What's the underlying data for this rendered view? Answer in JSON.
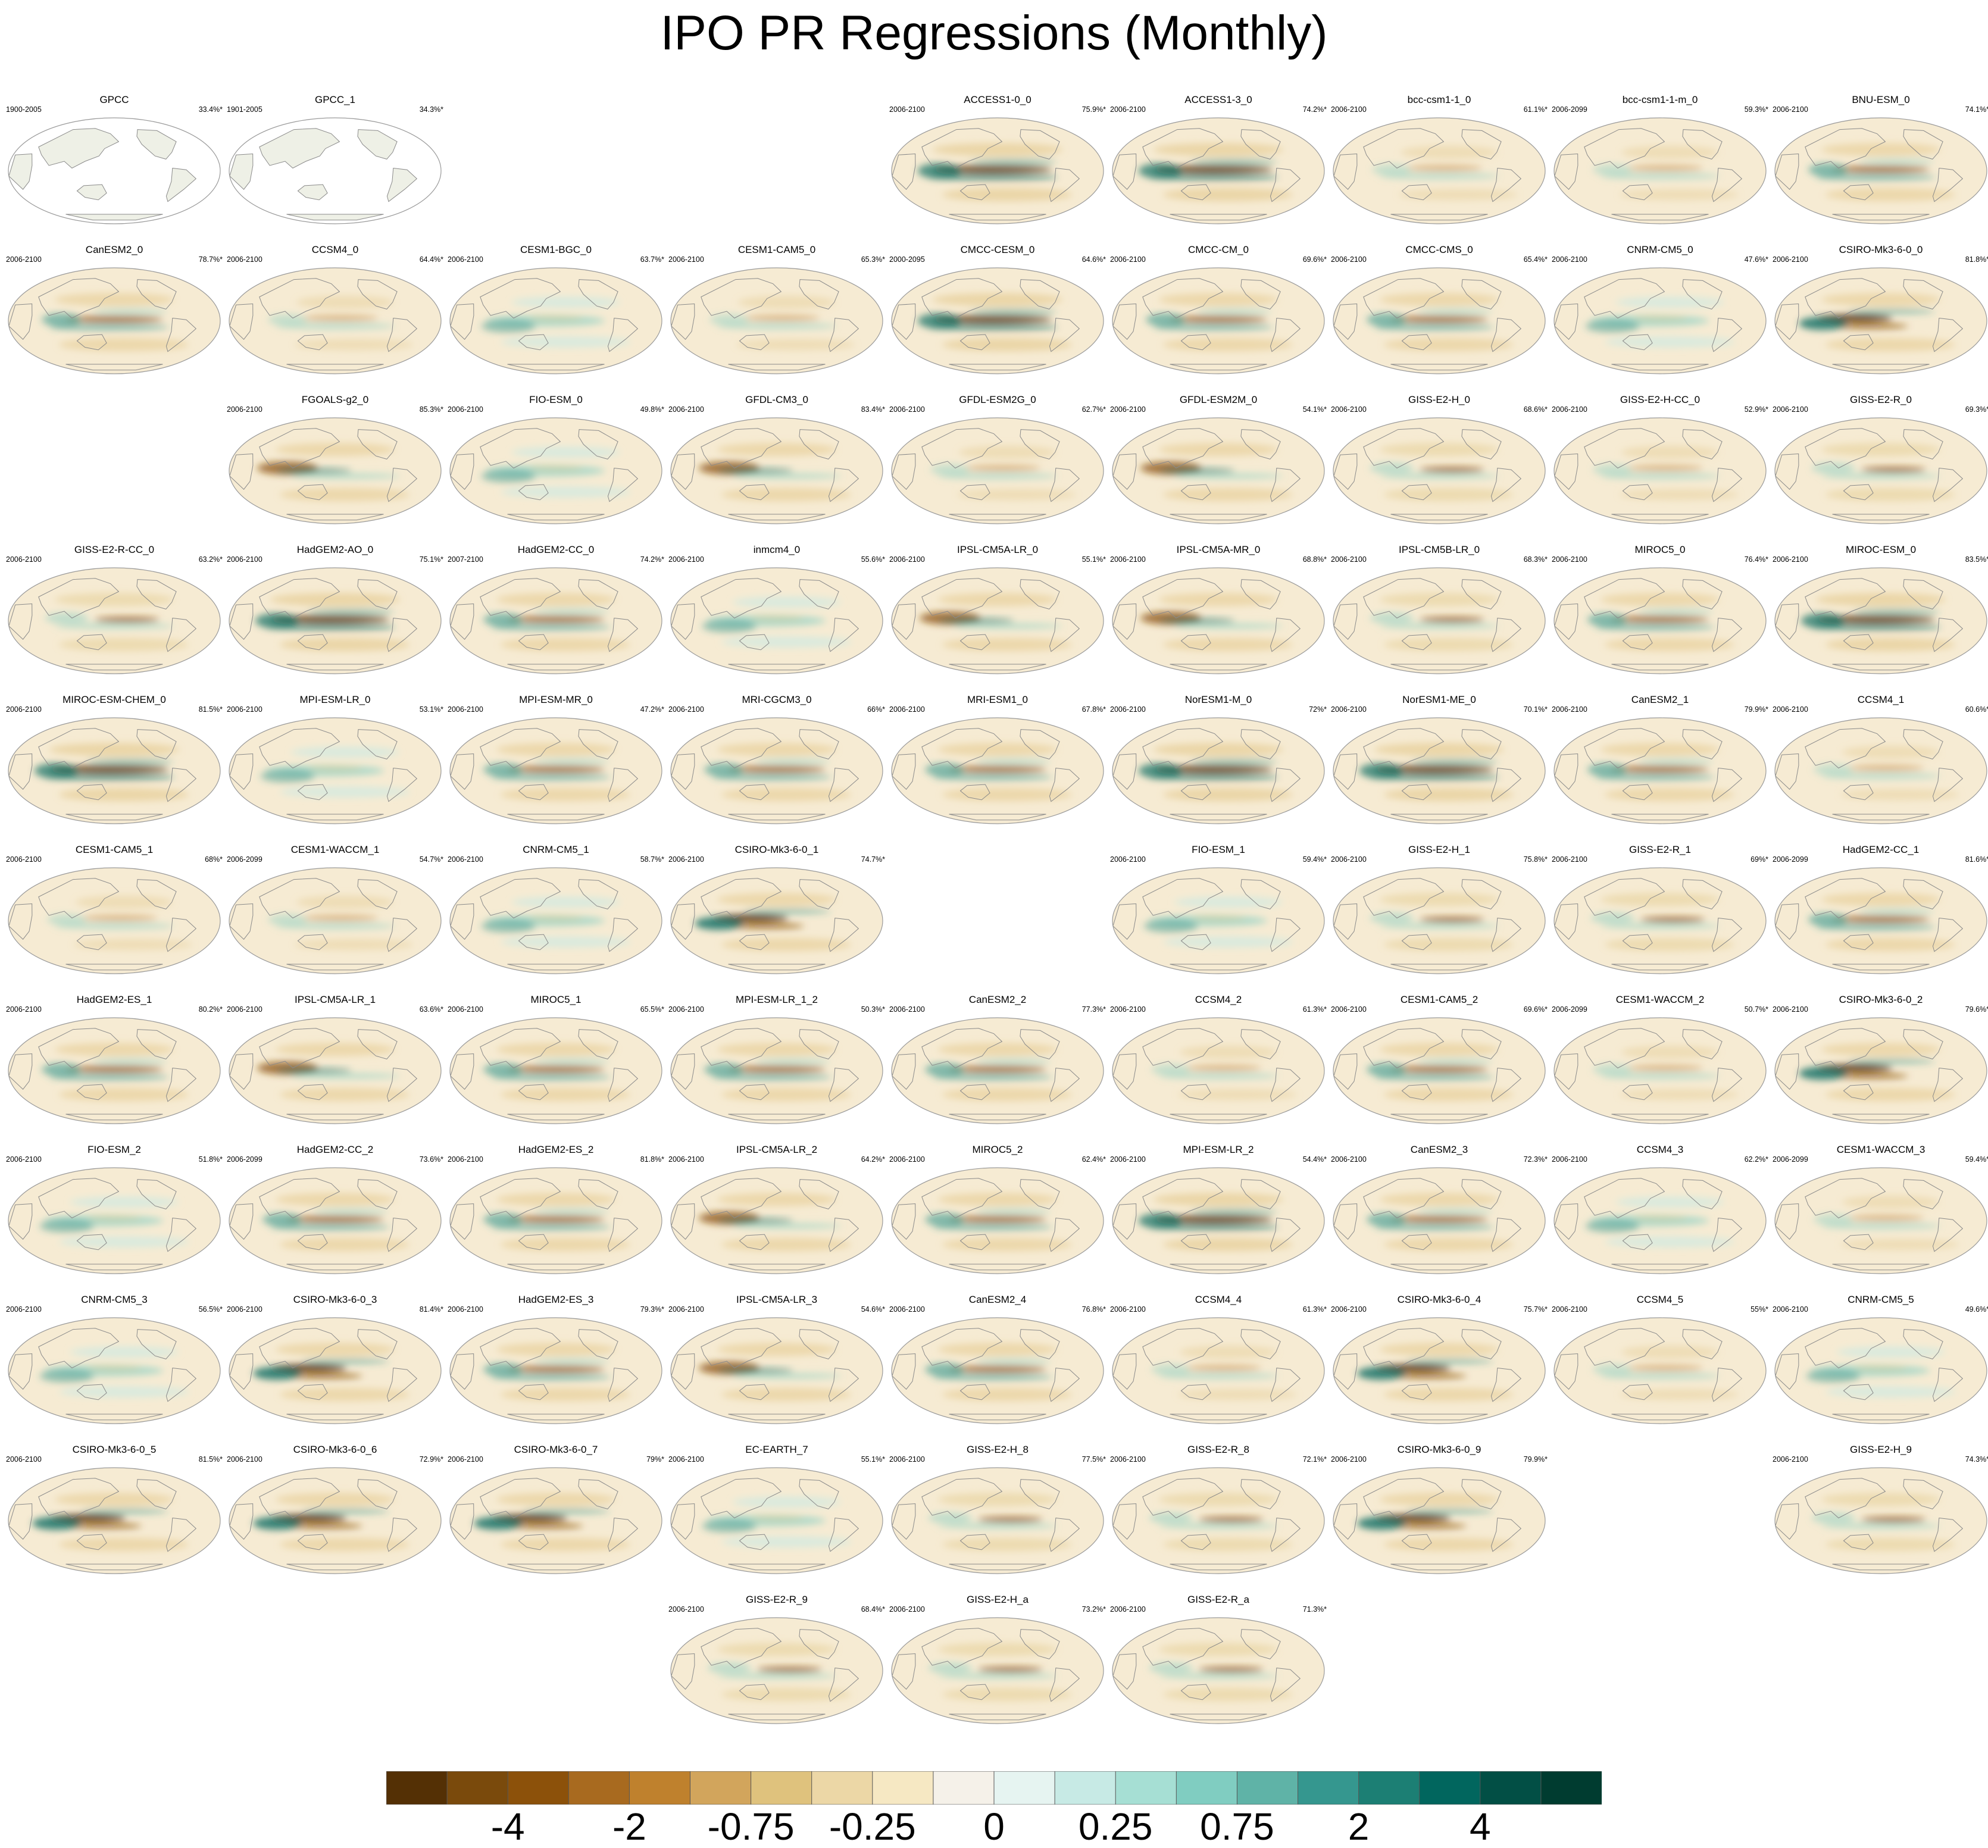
{
  "title": "IPO PR Regressions (Monthly)",
  "panels": [
    {
      "name": "GPCC",
      "years": "1900-2005",
      "pct": "33.4%*",
      "row": 0,
      "col": 0,
      "pattern": "obs"
    },
    {
      "name": "GPCC_1",
      "years": "1901-2005",
      "pct": "34.3%*",
      "row": 0,
      "col": 1,
      "pattern": "obs"
    },
    {
      "name": "ACCESS1-0_0",
      "years": "2006-2100",
      "pct": "75.9%*",
      "row": 0,
      "col": 4,
      "pattern": "strong"
    },
    {
      "name": "ACCESS1-3_0",
      "years": "2006-2100",
      "pct": "74.2%*",
      "row": 0,
      "col": 5,
      "pattern": "strong"
    },
    {
      "name": "bcc-csm1-1_0",
      "years": "2006-2100",
      "pct": "61.1%*",
      "row": 0,
      "col": 6,
      "pattern": "weak"
    },
    {
      "name": "bcc-csm1-1-m_0",
      "years": "2006-2099",
      "pct": "59.3%*",
      "row": 0,
      "col": 7,
      "pattern": "weak"
    },
    {
      "name": "BNU-ESM_0",
      "years": "2006-2100",
      "pct": "74.1%*",
      "row": 0,
      "col": 8,
      "pattern": "moderate"
    },
    {
      "name": "CanESM2_0",
      "years": "2006-2100",
      "pct": "78.7%*",
      "row": 1,
      "col": 0,
      "pattern": "moderate"
    },
    {
      "name": "CCSM4_0",
      "years": "2006-2100",
      "pct": "64.4%*",
      "row": 1,
      "col": 1,
      "pattern": "weak"
    },
    {
      "name": "CESM1-BGC_0",
      "years": "2006-2100",
      "pct": "63.7%*",
      "row": 1,
      "col": 2,
      "pattern": "wet"
    },
    {
      "name": "CESM1-CAM5_0",
      "years": "2006-2100",
      "pct": "65.3%*",
      "row": 1,
      "col": 3,
      "pattern": "weak"
    },
    {
      "name": "CMCC-CESM_0",
      "years": "2000-2095",
      "pct": "64.6%*",
      "row": 1,
      "col": 4,
      "pattern": "strong"
    },
    {
      "name": "CMCC-CM_0",
      "years": "2006-2100",
      "pct": "69.6%*",
      "row": 1,
      "col": 5,
      "pattern": "moderate"
    },
    {
      "name": "CMCC-CMS_0",
      "years": "2006-2100",
      "pct": "65.4%*",
      "row": 1,
      "col": 6,
      "pattern": "moderate"
    },
    {
      "name": "CNRM-CM5_0",
      "years": "2006-2100",
      "pct": "47.6%*",
      "row": 1,
      "col": 7,
      "pattern": "wet"
    },
    {
      "name": "CSIRO-Mk3-6-0_0",
      "years": "2006-2100",
      "pct": "81.8%*",
      "row": 1,
      "col": 8,
      "pattern": "csiro"
    },
    {
      "name": "FGOALS-g2_0",
      "years": "2006-2100",
      "pct": "85.3%*",
      "row": 2,
      "col": 1,
      "pattern": "west"
    },
    {
      "name": "FIO-ESM_0",
      "years": "2006-2100",
      "pct": "49.8%*",
      "row": 2,
      "col": 2,
      "pattern": "wet"
    },
    {
      "name": "GFDL-CM3_0",
      "years": "2006-2100",
      "pct": "83.4%*",
      "row": 2,
      "col": 3,
      "pattern": "west"
    },
    {
      "name": "GFDL-ESM2G_0",
      "years": "2006-2100",
      "pct": "62.7%*",
      "row": 2,
      "col": 4,
      "pattern": "weak"
    },
    {
      "name": "GFDL-ESM2M_0",
      "years": "2006-2100",
      "pct": "54.1%*",
      "row": 2,
      "col": 5,
      "pattern": "west"
    },
    {
      "name": "GISS-E2-H_0",
      "years": "2006-2100",
      "pct": "68.6%*",
      "row": 2,
      "col": 6,
      "pattern": "giss"
    },
    {
      "name": "GISS-E2-H-CC_0",
      "years": "2006-2100",
      "pct": "52.9%*",
      "row": 2,
      "col": 7,
      "pattern": "weak"
    },
    {
      "name": "GISS-E2-R_0",
      "years": "2006-2100",
      "pct": "69.3%*",
      "row": 2,
      "col": 8,
      "pattern": "giss"
    },
    {
      "name": "GISS-E2-R-CC_0",
      "years": "2006-2100",
      "pct": "63.2%*",
      "row": 3,
      "col": 0,
      "pattern": "giss"
    },
    {
      "name": "HadGEM2-AO_0",
      "years": "2006-2100",
      "pct": "75.1%*",
      "row": 3,
      "col": 1,
      "pattern": "strong"
    },
    {
      "name": "HadGEM2-CC_0",
      "years": "2007-2100",
      "pct": "74.2%*",
      "row": 3,
      "col": 2,
      "pattern": "moderate"
    },
    {
      "name": "inmcm4_0",
      "years": "2006-2100",
      "pct": "55.6%*",
      "row": 3,
      "col": 3,
      "pattern": "wet"
    },
    {
      "name": "IPSL-CM5A-LR_0",
      "years": "2006-2100",
      "pct": "55.1%*",
      "row": 3,
      "col": 4,
      "pattern": "west"
    },
    {
      "name": "IPSL-CM5A-MR_0",
      "years": "2006-2100",
      "pct": "68.8%*",
      "row": 3,
      "col": 5,
      "pattern": "west"
    },
    {
      "name": "IPSL-CM5B-LR_0",
      "years": "2006-2100",
      "pct": "68.3%*",
      "row": 3,
      "col": 6,
      "pattern": "giss"
    },
    {
      "name": "MIROC5_0",
      "years": "2006-2100",
      "pct": "76.4%*",
      "row": 3,
      "col": 7,
      "pattern": "moderate"
    },
    {
      "name": "MIROC-ESM_0",
      "years": "2006-2100",
      "pct": "83.5%*",
      "row": 3,
      "col": 8,
      "pattern": "strong"
    },
    {
      "name": "MIROC-ESM-CHEM_0",
      "years": "2006-2100",
      "pct": "81.5%*",
      "row": 4,
      "col": 0,
      "pattern": "strong"
    },
    {
      "name": "MPI-ESM-LR_0",
      "years": "2006-2100",
      "pct": "53.1%*",
      "row": 4,
      "col": 1,
      "pattern": "wet"
    },
    {
      "name": "MPI-ESM-MR_0",
      "years": "2006-2100",
      "pct": "47.2%*",
      "row": 4,
      "col": 2,
      "pattern": "moderate"
    },
    {
      "name": "MRI-CGCM3_0",
      "years": "2006-2100",
      "pct": "66%*",
      "row": 4,
      "col": 3,
      "pattern": "moderate"
    },
    {
      "name": "MRI-ESM1_0",
      "years": "2006-2100",
      "pct": "67.8%*",
      "row": 4,
      "col": 4,
      "pattern": "moderate"
    },
    {
      "name": "NorESM1-M_0",
      "years": "2006-2100",
      "pct": "72%*",
      "row": 4,
      "col": 5,
      "pattern": "strong"
    },
    {
      "name": "NorESM1-ME_0",
      "years": "2006-2100",
      "pct": "70.1%*",
      "row": 4,
      "col": 6,
      "pattern": "strong"
    },
    {
      "name": "CanESM2_1",
      "years": "2006-2100",
      "pct": "79.9%*",
      "row": 4,
      "col": 7,
      "pattern": "moderate"
    },
    {
      "name": "CCSM4_1",
      "years": "2006-2100",
      "pct": "60.6%*",
      "row": 4,
      "col": 8,
      "pattern": "weak"
    },
    {
      "name": "CESM1-CAM5_1",
      "years": "2006-2100",
      "pct": "68%*",
      "row": 5,
      "col": 0,
      "pattern": "weak"
    },
    {
      "name": "CESM1-WACCM_1",
      "years": "2006-2099",
      "pct": "54.7%*",
      "row": 5,
      "col": 1,
      "pattern": "weak"
    },
    {
      "name": "CNRM-CM5_1",
      "years": "2006-2100",
      "pct": "58.7%*",
      "row": 5,
      "col": 2,
      "pattern": "wet"
    },
    {
      "name": "CSIRO-Mk3-6-0_1",
      "years": "2006-2100",
      "pct": "74.7%*",
      "row": 5,
      "col": 3,
      "pattern": "csiro"
    },
    {
      "name": "FIO-ESM_1",
      "years": "2006-2100",
      "pct": "59.4%*",
      "row": 5,
      "col": 5,
      "pattern": "wet"
    },
    {
      "name": "GISS-E2-H_1",
      "years": "2006-2100",
      "pct": "75.8%*",
      "row": 5,
      "col": 6,
      "pattern": "giss"
    },
    {
      "name": "GISS-E2-R_1",
      "years": "2006-2100",
      "pct": "69%*",
      "row": 5,
      "col": 7,
      "pattern": "giss"
    },
    {
      "name": "HadGEM2-CC_1",
      "years": "2006-2099",
      "pct": "81.6%*",
      "row": 5,
      "col": 8,
      "pattern": "moderate"
    },
    {
      "name": "HadGEM2-ES_1",
      "years": "2006-2100",
      "pct": "80.2%*",
      "row": 6,
      "col": 0,
      "pattern": "moderate"
    },
    {
      "name": "IPSL-CM5A-LR_1",
      "years": "2006-2100",
      "pct": "63.6%*",
      "row": 6,
      "col": 1,
      "pattern": "west"
    },
    {
      "name": "MIROC5_1",
      "years": "2006-2100",
      "pct": "65.5%*",
      "row": 6,
      "col": 2,
      "pattern": "moderate"
    },
    {
      "name": "MPI-ESM-LR_1_2",
      "years": "2006-2100",
      "pct": "50.3%*",
      "row": 6,
      "col": 3,
      "pattern": "moderate"
    },
    {
      "name": "CanESM2_2",
      "years": "2006-2100",
      "pct": "77.3%*",
      "row": 6,
      "col": 4,
      "pattern": "moderate"
    },
    {
      "name": "CCSM4_2",
      "years": "2006-2100",
      "pct": "61.3%*",
      "row": 6,
      "col": 5,
      "pattern": "weak"
    },
    {
      "name": "CESM1-CAM5_2",
      "years": "2006-2100",
      "pct": "69.6%*",
      "row": 6,
      "col": 6,
      "pattern": "moderate"
    },
    {
      "name": "CESM1-WACCM_2",
      "years": "2006-2099",
      "pct": "50.7%*",
      "row": 6,
      "col": 7,
      "pattern": "weak"
    },
    {
      "name": "CSIRO-Mk3-6-0_2",
      "years": "2006-2100",
      "pct": "79.6%*",
      "row": 6,
      "col": 8,
      "pattern": "csiro"
    },
    {
      "name": "FIO-ESM_2",
      "years": "2006-2100",
      "pct": "51.8%*",
      "row": 7,
      "col": 0,
      "pattern": "wet"
    },
    {
      "name": "HadGEM2-CC_2",
      "years": "2006-2099",
      "pct": "73.6%*",
      "row": 7,
      "col": 1,
      "pattern": "moderate"
    },
    {
      "name": "HadGEM2-ES_2",
      "years": "2006-2100",
      "pct": "81.8%*",
      "row": 7,
      "col": 2,
      "pattern": "moderate"
    },
    {
      "name": "IPSL-CM5A-LR_2",
      "years": "2006-2100",
      "pct": "64.2%*",
      "row": 7,
      "col": 3,
      "pattern": "west"
    },
    {
      "name": "MIROC5_2",
      "years": "2006-2100",
      "pct": "62.4%*",
      "row": 7,
      "col": 4,
      "pattern": "moderate"
    },
    {
      "name": "MPI-ESM-LR_2",
      "years": "2006-2100",
      "pct": "54.4%*",
      "row": 7,
      "col": 5,
      "pattern": "strong"
    },
    {
      "name": "CanESM2_3",
      "years": "2006-2100",
      "pct": "72.3%*",
      "row": 7,
      "col": 6,
      "pattern": "moderate"
    },
    {
      "name": "CCSM4_3",
      "years": "2006-2100",
      "pct": "62.2%*",
      "row": 7,
      "col": 7,
      "pattern": "wet"
    },
    {
      "name": "CESM1-WACCM_3",
      "years": "2006-2099",
      "pct": "59.4%*",
      "row": 7,
      "col": 8,
      "pattern": "weak"
    },
    {
      "name": "CNRM-CM5_3",
      "years": "2006-2100",
      "pct": "56.5%*",
      "row": 8,
      "col": 0,
      "pattern": "wet"
    },
    {
      "name": "CSIRO-Mk3-6-0_3",
      "years": "2006-2100",
      "pct": "81.4%*",
      "row": 8,
      "col": 1,
      "pattern": "csiro"
    },
    {
      "name": "HadGEM2-ES_3",
      "years": "2006-2100",
      "pct": "79.3%*",
      "row": 8,
      "col": 2,
      "pattern": "moderate"
    },
    {
      "name": "IPSL-CM5A-LR_3",
      "years": "2006-2100",
      "pct": "54.6%*",
      "row": 8,
      "col": 3,
      "pattern": "west"
    },
    {
      "name": "CanESM2_4",
      "years": "2006-2100",
      "pct": "76.8%*",
      "row": 8,
      "col": 4,
      "pattern": "moderate"
    },
    {
      "name": "CCSM4_4",
      "years": "2006-2100",
      "pct": "61.3%*",
      "row": 8,
      "col": 5,
      "pattern": "weak"
    },
    {
      "name": "CSIRO-Mk3-6-0_4",
      "years": "2006-2100",
      "pct": "75.7%*",
      "row": 8,
      "col": 6,
      "pattern": "csiro"
    },
    {
      "name": "CCSM4_5",
      "years": "2006-2100",
      "pct": "55%*",
      "row": 8,
      "col": 7,
      "pattern": "weak"
    },
    {
      "name": "CNRM-CM5_5",
      "years": "2006-2100",
      "pct": "49.6%*",
      "row": 8,
      "col": 8,
      "pattern": "wet"
    },
    {
      "name": "CSIRO-Mk3-6-0_5",
      "years": "2006-2100",
      "pct": "81.5%*",
      "row": 9,
      "col": 0,
      "pattern": "csiro"
    },
    {
      "name": "CSIRO-Mk3-6-0_6",
      "years": "2006-2100",
      "pct": "72.9%*",
      "row": 9,
      "col": 1,
      "pattern": "csiro"
    },
    {
      "name": "CSIRO-Mk3-6-0_7",
      "years": "2006-2100",
      "pct": "79%*",
      "row": 9,
      "col": 2,
      "pattern": "csiro"
    },
    {
      "name": "EC-EARTH_7",
      "years": "2006-2100",
      "pct": "55.1%*",
      "row": 9,
      "col": 3,
      "pattern": "wet"
    },
    {
      "name": "GISS-E2-H_8",
      "years": "2006-2100",
      "pct": "77.5%*",
      "row": 9,
      "col": 4,
      "pattern": "giss"
    },
    {
      "name": "GISS-E2-R_8",
      "years": "2006-2100",
      "pct": "72.1%*",
      "row": 9,
      "col": 5,
      "pattern": "giss"
    },
    {
      "name": "CSIRO-Mk3-6-0_9",
      "years": "2006-2100",
      "pct": "79.9%*",
      "row": 9,
      "col": 6,
      "pattern": "csiro"
    },
    {
      "name": "GISS-E2-H_9",
      "years": "2006-2100",
      "pct": "74.3%*",
      "row": 9,
      "col": 8,
      "pattern": "giss"
    },
    {
      "name": "GISS-E2-R_9",
      "years": "2006-2100",
      "pct": "68.4%*",
      "row": 10,
      "col": 3,
      "pattern": "giss"
    },
    {
      "name": "GISS-E2-H_a",
      "years": "2006-2100",
      "pct": "73.2%*",
      "row": 10,
      "col": 4,
      "pattern": "giss"
    },
    {
      "name": "GISS-E2-R_a",
      "years": "2006-2100",
      "pct": "71.3%*",
      "row": 10,
      "col": 5,
      "pattern": "giss"
    }
  ],
  "colorbar": {
    "colors": [
      "#543005",
      "#7a4a0c",
      "#8c510a",
      "#a86a1f",
      "#bf812d",
      "#d2a55c",
      "#dfc27d",
      "#ecd7a6",
      "#f6e8c3",
      "#f5f1e9",
      "#e6f4f1",
      "#c7eae5",
      "#a6dfd4",
      "#80cdc1",
      "#5fb3a7",
      "#35978f",
      "#1c7f74",
      "#01665e",
      "#024f45",
      "#003c30"
    ],
    "tick_labels": [
      "-4",
      "-2",
      "-0.75",
      "-0.25",
      "0",
      "0.25",
      "0.75",
      "2",
      "4"
    ],
    "tick_boundaries": [
      2,
      4,
      6,
      8,
      10,
      12,
      14,
      16,
      18
    ]
  }
}
